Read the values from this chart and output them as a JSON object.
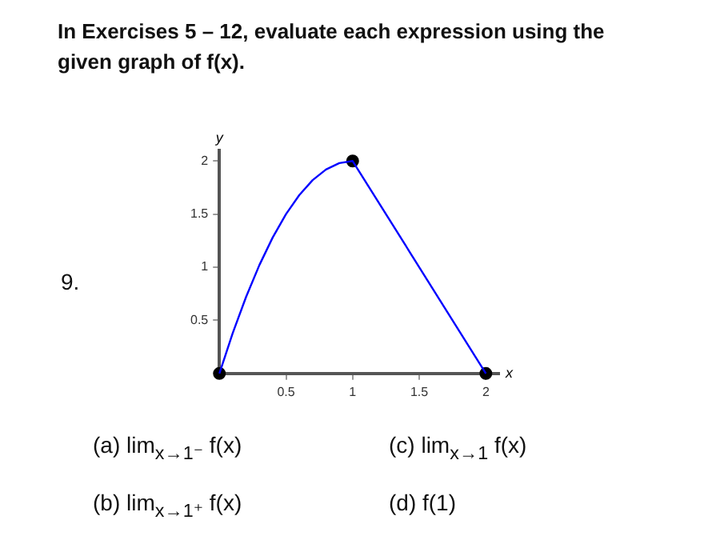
{
  "chart_data": {
    "type": "line",
    "title": "In Exercises 5 – 12, evaluate each expression using the given graph of f(x).",
    "xlabel": "x",
    "ylabel": "y",
    "annotations": [
      "9.",
      "(a) lim$_{x→1⁻}$ f(x)",
      "(b) lim$_{x→1⁺}$ f(x)",
      "(c) lim$_{x→1}$ f(x)",
      "(d) f(1)"
    ],
    "series": [
      {
        "type": "line",
        "color": "#0000ff",
        "x": [
          0,
          0.1,
          0.2,
          0.3,
          0.4,
          0.5,
          0.6,
          0.7,
          0.8,
          0.9,
          1,
          2
        ],
        "values": [
          0,
          0.38,
          0.72,
          1.02,
          1.28,
          1.5,
          1.68,
          1.82,
          1.92,
          1.98,
          2,
          0
        ]
      },
      {
        "type": "scatter",
        "color": "#000000",
        "x": [
          0,
          1,
          2
        ],
        "values": [
          0,
          2,
          0
        ]
      }
    ],
    "xlim": [
      0,
      2.1
    ],
    "ylim": [
      0,
      2.1
    ],
    "xticks": [
      0.5,
      1,
      1.5,
      2
    ],
    "yticks": [
      0.5,
      1,
      1.5,
      2
    ],
    "grid": false,
    "legend": false
  }
}
